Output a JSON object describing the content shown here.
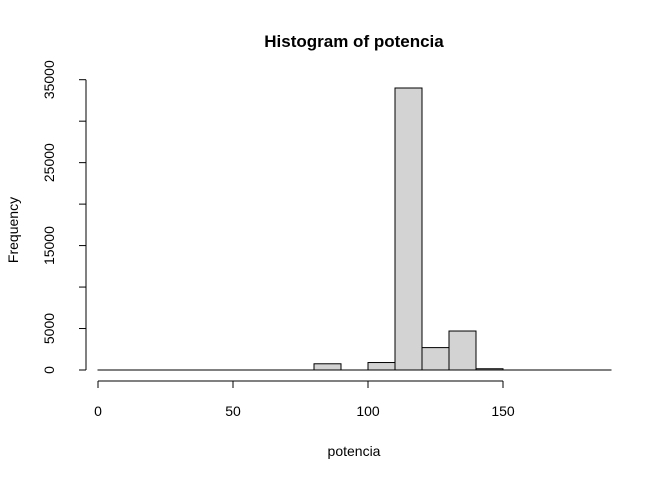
{
  "chart_data": {
    "type": "bar",
    "title": "Histogram of potencia",
    "xlabel": "potencia",
    "ylabel": "Frequency",
    "xlim": [
      0,
      190
    ],
    "ylim": [
      0,
      35000
    ],
    "x_ticks": [
      0,
      50,
      100,
      150
    ],
    "y_ticks": [
      0,
      5000,
      15000,
      25000,
      35000
    ],
    "bins": [
      {
        "start": 0,
        "end": 10,
        "count": 0
      },
      {
        "start": 10,
        "end": 20,
        "count": 0
      },
      {
        "start": 20,
        "end": 30,
        "count": 0
      },
      {
        "start": 30,
        "end": 40,
        "count": 0
      },
      {
        "start": 40,
        "end": 50,
        "count": 0
      },
      {
        "start": 50,
        "end": 60,
        "count": 0
      },
      {
        "start": 60,
        "end": 70,
        "count": 0
      },
      {
        "start": 70,
        "end": 80,
        "count": 0
      },
      {
        "start": 80,
        "end": 90,
        "count": 750
      },
      {
        "start": 90,
        "end": 100,
        "count": 0
      },
      {
        "start": 100,
        "end": 110,
        "count": 900
      },
      {
        "start": 110,
        "end": 120,
        "count": 34000
      },
      {
        "start": 120,
        "end": 130,
        "count": 2700
      },
      {
        "start": 130,
        "end": 140,
        "count": 4700
      },
      {
        "start": 140,
        "end": 150,
        "count": 150
      },
      {
        "start": 150,
        "end": 160,
        "count": 0
      },
      {
        "start": 160,
        "end": 170,
        "count": 0
      },
      {
        "start": 170,
        "end": 180,
        "count": 0
      },
      {
        "start": 180,
        "end": 190,
        "count": 0
      }
    ],
    "bar_fill": "#d3d3d3",
    "bar_stroke": "#000000",
    "grid": false
  }
}
